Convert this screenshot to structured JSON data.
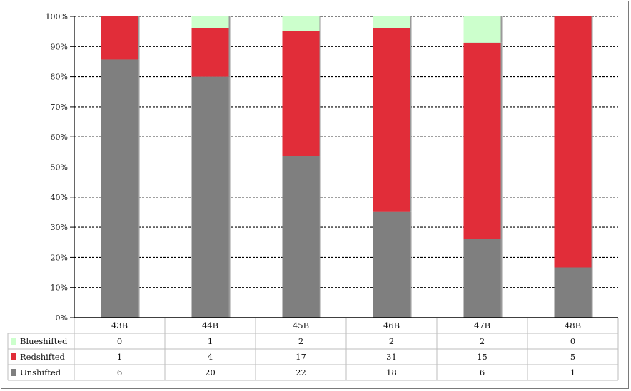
{
  "chart_data": {
    "type": "bar",
    "stacked": true,
    "normalized": true,
    "categories": [
      "43B",
      "44B",
      "45B",
      "46B",
      "47B",
      "48B"
    ],
    "series": [
      {
        "name": "Unshifted",
        "values": [
          6,
          20,
          22,
          18,
          6,
          1
        ],
        "color": "#7f7f7f"
      },
      {
        "name": "Redshifted",
        "values": [
          1,
          4,
          17,
          31,
          15,
          5
        ],
        "color": "#e12d39"
      },
      {
        "name": "Blueshifted",
        "values": [
          0,
          1,
          2,
          2,
          2,
          0
        ],
        "color": "#ccffcc"
      }
    ],
    "table_row_order": [
      "Blueshifted",
      "Redshifted",
      "Unshifted"
    ],
    "yticks": [
      "0%",
      "10%",
      "20%",
      "30%",
      "40%",
      "50%",
      "60%",
      "70%",
      "80%",
      "90%",
      "100%"
    ],
    "ylim": [
      0,
      100
    ],
    "grid": true,
    "legend": "data-table"
  }
}
